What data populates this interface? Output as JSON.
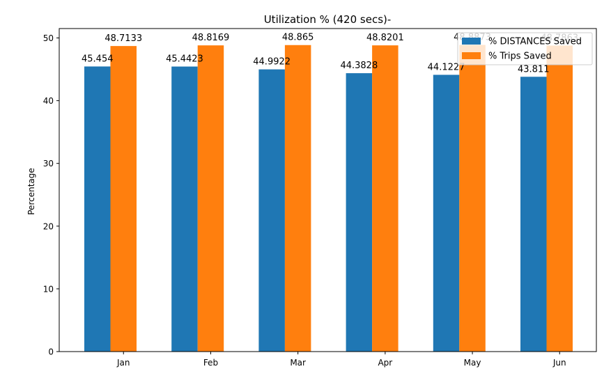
{
  "chart_data": {
    "type": "bar",
    "title": "Utilization % (420 secs)-",
    "xlabel": "",
    "ylabel": "Percentage",
    "categories": [
      "Jan",
      "Feb",
      "Mar",
      "Apr",
      "May",
      "Jun"
    ],
    "ylim": [
      0,
      51.5
    ],
    "yticks": [
      0,
      10,
      20,
      30,
      40,
      50
    ],
    "grid": false,
    "legend_position": "top-right",
    "series": [
      {
        "name": "% DISTANCES Saved",
        "color": "#1f77b4",
        "values": [
          45.454,
          45.4423,
          44.9922,
          44.3828,
          44.1227,
          43.811
        ],
        "labels": [
          "45.454",
          "45.4423",
          "44.9922",
          "44.3828",
          "44.1227",
          "43.811"
        ]
      },
      {
        "name": "% Trips Saved",
        "color": "#ff7f0e",
        "values": [
          48.7133,
          48.8169,
          48.865,
          48.8201,
          48.8873,
          48.7863
        ],
        "labels": [
          "48.7133",
          "48.8169",
          "48.865",
          "48.8201",
          "48.8873",
          "48.7863"
        ]
      }
    ]
  }
}
